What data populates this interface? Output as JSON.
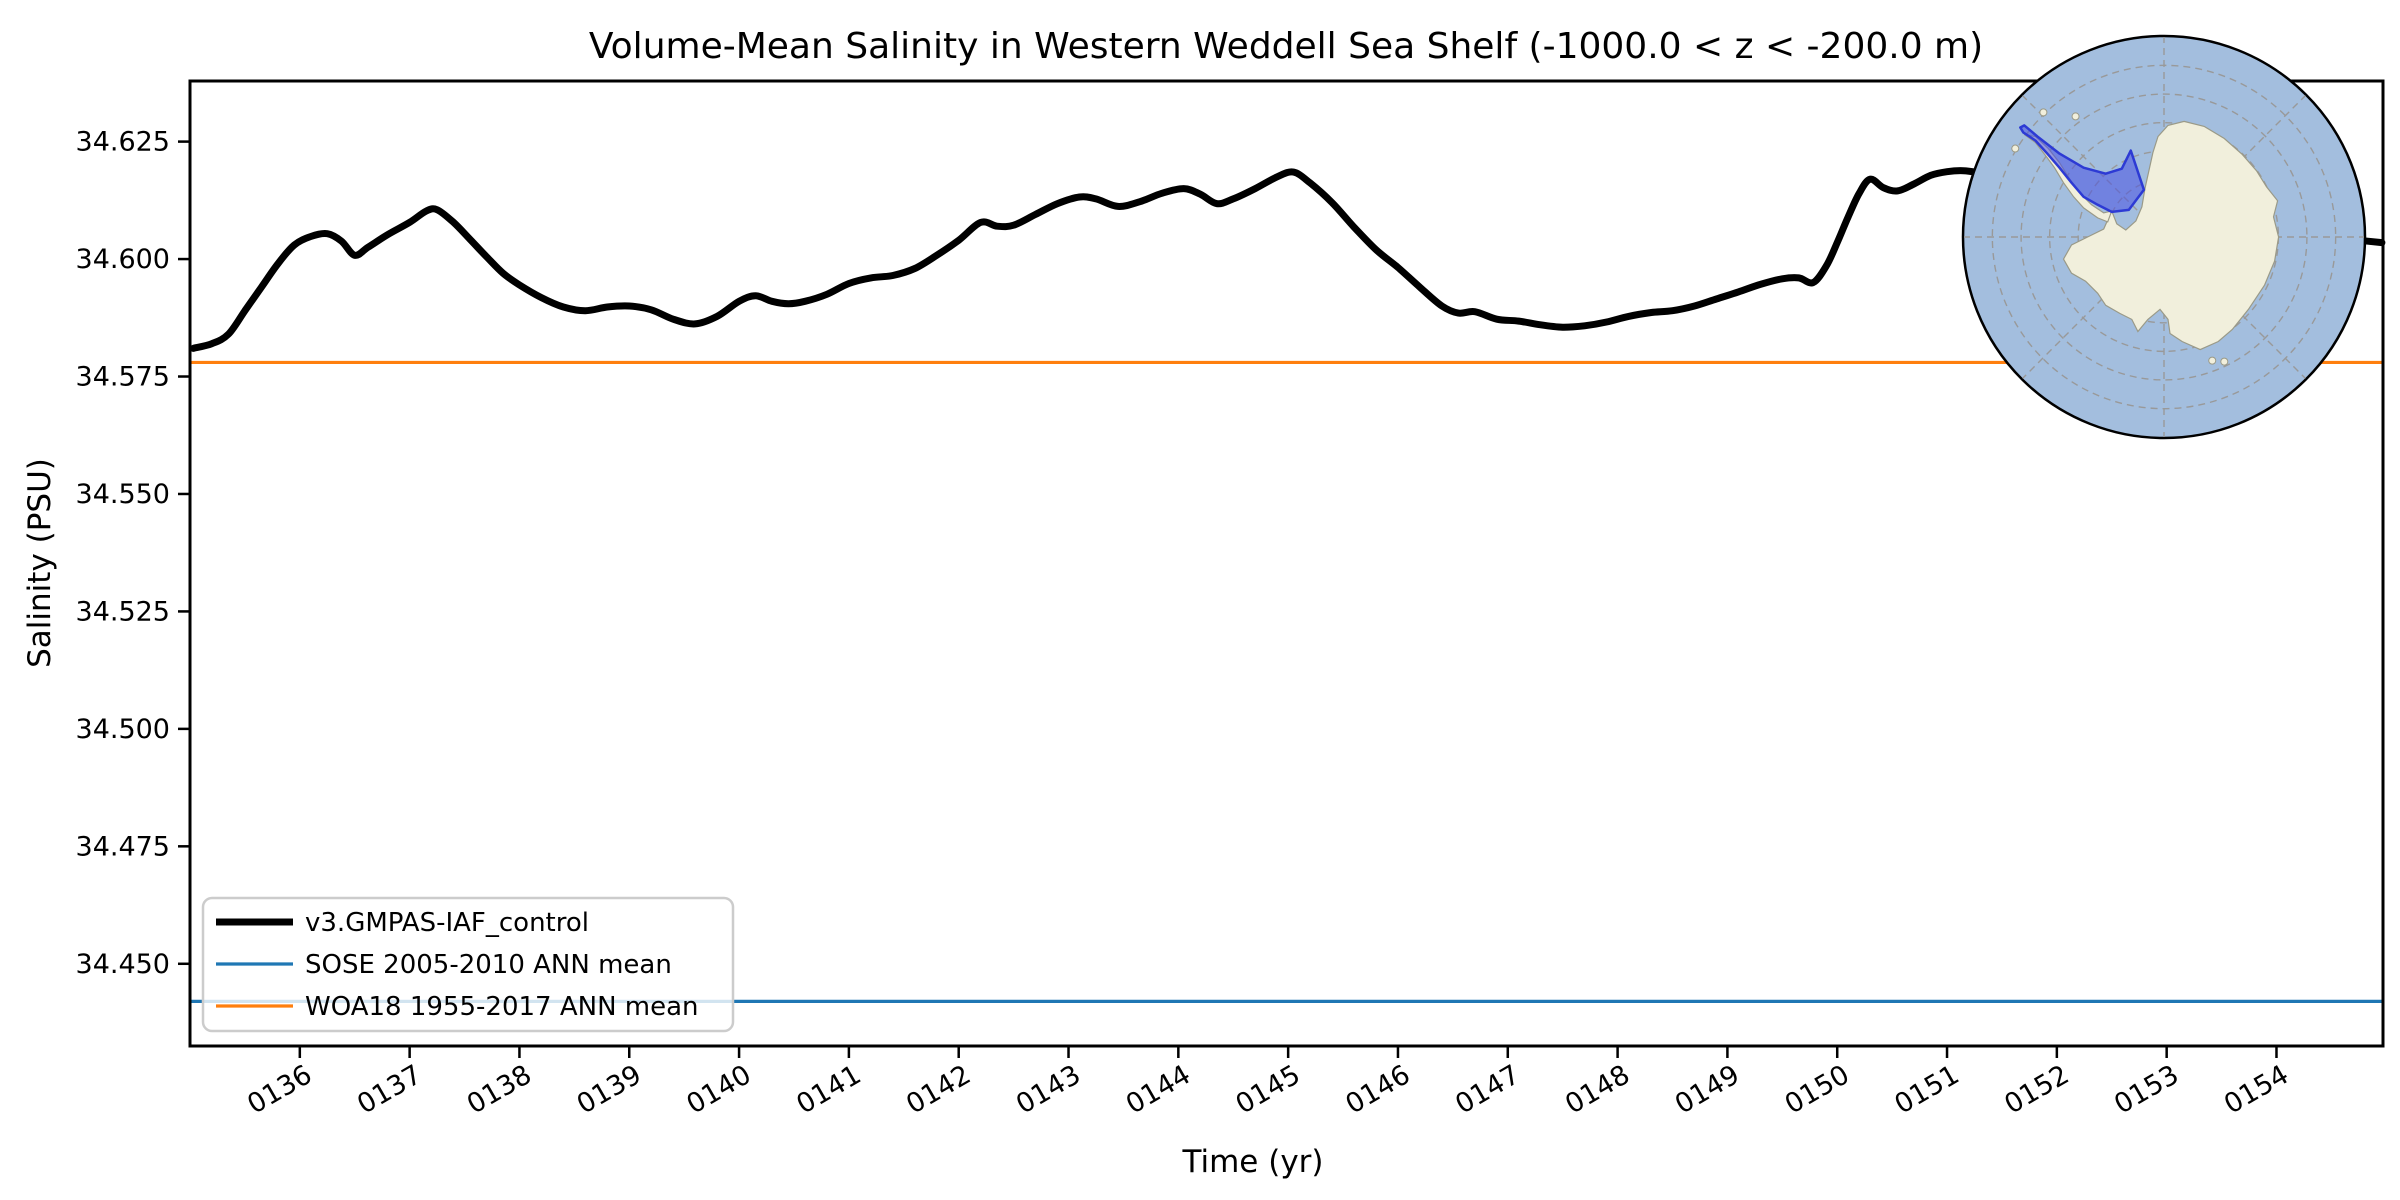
{
  "title": "Volume-Mean Salinity in Western Weddell Sea Shelf (-1000.0 < z < -200.0 m)",
  "axes": {
    "xlabel": "Time (yr)",
    "ylabel": "Salinity (PSU)",
    "x_tick_labels": [
      "0136",
      "0137",
      "0138",
      "0139",
      "0140",
      "0141",
      "0142",
      "0143",
      "0144",
      "0145",
      "0146",
      "0147",
      "0148",
      "0149",
      "0150",
      "0151",
      "0152",
      "0153",
      "0154"
    ],
    "x_tick_values": [
      136,
      137,
      138,
      139,
      140,
      141,
      142,
      143,
      144,
      145,
      146,
      147,
      148,
      149,
      150,
      151,
      152,
      153,
      154
    ],
    "y_tick_labels": [
      "34.450",
      "34.475",
      "34.500",
      "34.525",
      "34.550",
      "34.575",
      "34.600",
      "34.625"
    ],
    "y_tick_values": [
      34.45,
      34.475,
      34.5,
      34.525,
      34.55,
      34.575,
      34.6,
      34.625
    ]
  },
  "legend": {
    "entries": [
      {
        "label": "v3.GMPAS-IAF_control",
        "color": "#000000",
        "line_width": 7
      },
      {
        "label": "SOSE 2005-2010 ANN mean",
        "color": "#1f77b4",
        "line_width": 3.2
      },
      {
        "label": "WOA18 1955-2017 ANN mean",
        "color": "#ff7f0e",
        "line_width": 3.2
      }
    ]
  },
  "chart_data": {
    "type": "line",
    "title": "Volume-Mean Salinity in Western Weddell Sea Shelf (-1000.0 < z < -200.0 m)",
    "xlabel": "Time (yr)",
    "ylabel": "Salinity (PSU)",
    "xlim": [
      135.0,
      154.97
    ],
    "ylim": [
      34.4325,
      34.6379
    ],
    "grid": false,
    "legend_position": "lower left",
    "x_ticks": [
      136,
      137,
      138,
      139,
      140,
      141,
      142,
      143,
      144,
      145,
      146,
      147,
      148,
      149,
      150,
      151,
      152,
      153,
      154
    ],
    "y_ticks": [
      34.45,
      34.475,
      34.5,
      34.525,
      34.55,
      34.575,
      34.6,
      34.625
    ],
    "series": [
      {
        "name": "v3.GMPAS-IAF_control",
        "kind": "line",
        "color": "#000000",
        "line_width": 7,
        "points": [
          [
            135.03,
            34.581
          ],
          [
            135.2,
            34.582
          ],
          [
            135.35,
            34.584
          ],
          [
            135.5,
            34.589
          ],
          [
            135.65,
            34.594
          ],
          [
            135.8,
            34.599
          ],
          [
            135.95,
            34.603
          ],
          [
            136.1,
            34.6048
          ],
          [
            136.25,
            34.6054
          ],
          [
            136.38,
            34.6038
          ],
          [
            136.5,
            34.6008
          ],
          [
            136.62,
            34.6025
          ],
          [
            136.8,
            34.6052
          ],
          [
            137.0,
            34.6078
          ],
          [
            137.15,
            34.6102
          ],
          [
            137.25,
            34.6105
          ],
          [
            137.4,
            34.6078
          ],
          [
            137.55,
            34.6042
          ],
          [
            137.7,
            34.6005
          ],
          [
            137.85,
            34.597
          ],
          [
            138.0,
            34.5945
          ],
          [
            138.2,
            34.5918
          ],
          [
            138.4,
            34.5898
          ],
          [
            138.6,
            34.589
          ],
          [
            138.8,
            34.5898
          ],
          [
            139.0,
            34.59
          ],
          [
            139.2,
            34.5892
          ],
          [
            139.4,
            34.5872
          ],
          [
            139.6,
            34.5862
          ],
          [
            139.8,
            34.5878
          ],
          [
            140.0,
            34.591
          ],
          [
            140.15,
            34.5922
          ],
          [
            140.3,
            34.591
          ],
          [
            140.45,
            34.5905
          ],
          [
            140.6,
            34.591
          ],
          [
            140.8,
            34.5925
          ],
          [
            141.0,
            34.5948
          ],
          [
            141.2,
            34.596
          ],
          [
            141.4,
            34.5965
          ],
          [
            141.6,
            34.598
          ],
          [
            141.8,
            34.6008
          ],
          [
            142.0,
            34.604
          ],
          [
            142.2,
            34.6078
          ],
          [
            142.35,
            34.607
          ],
          [
            142.5,
            34.6072
          ],
          [
            142.7,
            34.6095
          ],
          [
            142.9,
            34.6118
          ],
          [
            143.1,
            34.6132
          ],
          [
            143.25,
            34.6128
          ],
          [
            143.45,
            34.6112
          ],
          [
            143.65,
            34.6122
          ],
          [
            143.85,
            34.614
          ],
          [
            144.05,
            34.615
          ],
          [
            144.2,
            34.6138
          ],
          [
            144.35,
            34.6118
          ],
          [
            144.5,
            34.6128
          ],
          [
            144.7,
            34.615
          ],
          [
            144.9,
            34.6175
          ],
          [
            145.05,
            34.6185
          ],
          [
            145.2,
            34.6162
          ],
          [
            145.4,
            34.612
          ],
          [
            145.6,
            34.6068
          ],
          [
            145.8,
            34.602
          ],
          [
            146.0,
            34.5982
          ],
          [
            146.2,
            34.594
          ],
          [
            146.4,
            34.59
          ],
          [
            146.55,
            34.5885
          ],
          [
            146.7,
            34.5888
          ],
          [
            146.9,
            34.5872
          ],
          [
            147.1,
            34.5868
          ],
          [
            147.3,
            34.586
          ],
          [
            147.5,
            34.5855
          ],
          [
            147.7,
            34.5858
          ],
          [
            147.9,
            34.5866
          ],
          [
            148.1,
            34.5878
          ],
          [
            148.3,
            34.5886
          ],
          [
            148.5,
            34.589
          ],
          [
            148.7,
            34.59
          ],
          [
            148.9,
            34.5915
          ],
          [
            149.1,
            34.593
          ],
          [
            149.3,
            34.5946
          ],
          [
            149.5,
            34.5958
          ],
          [
            149.65,
            34.596
          ],
          [
            149.78,
            34.595
          ],
          [
            149.9,
            34.5985
          ],
          [
            150.0,
            34.6035
          ],
          [
            150.1,
            34.609
          ],
          [
            150.2,
            34.614
          ],
          [
            150.3,
            34.617
          ],
          [
            150.42,
            34.6152
          ],
          [
            150.55,
            34.6145
          ],
          [
            150.7,
            34.616
          ],
          [
            150.85,
            34.6178
          ],
          [
            151.0,
            34.6186
          ],
          [
            151.15,
            34.6188
          ],
          [
            151.35,
            34.6182
          ],
          [
            151.6,
            34.6174
          ],
          [
            151.9,
            34.6163
          ],
          [
            152.2,
            34.6152
          ],
          [
            152.5,
            34.614
          ],
          [
            152.8,
            34.6128
          ],
          [
            153.1,
            34.6115
          ],
          [
            153.4,
            34.6102
          ],
          [
            153.7,
            34.6088
          ],
          [
            154.0,
            34.6072
          ],
          [
            154.3,
            34.6056
          ],
          [
            154.55,
            34.6046
          ],
          [
            154.75,
            34.604
          ],
          [
            154.96,
            34.6035
          ]
        ]
      },
      {
        "name": "SOSE 2005-2010 ANN mean",
        "kind": "hline",
        "value": 34.442,
        "color": "#1f77b4",
        "line_width": 3.2
      },
      {
        "name": "WOA18 1955-2017 ANN mean",
        "kind": "hline",
        "value": 34.578,
        "color": "#ff7f0e",
        "line_width": 3.2
      }
    ]
  },
  "inset_map": {
    "name": "antarctica-region-inset",
    "region_name": "Western Weddell Sea Shelf",
    "colors": {
      "ocean": "#a3bede",
      "land": "#f1efdc",
      "coast": "#9a9a88",
      "graticule": "#999999",
      "border": "#000000",
      "region_fill": "rgba(72,80,225,0.55)",
      "region_edge": "#2d3ad4"
    },
    "graticule_radii": [
      0.142,
      0.285,
      0.427,
      0.569,
      0.711,
      0.854
    ],
    "land_main": [
      [
        -0.26,
        -0.13
      ],
      [
        -0.3,
        -0.04
      ],
      [
        -0.38,
        0.0
      ],
      [
        -0.46,
        0.04
      ],
      [
        -0.5,
        0.11
      ],
      [
        -0.46,
        0.18
      ],
      [
        -0.39,
        0.22
      ],
      [
        -0.33,
        0.28
      ],
      [
        -0.29,
        0.34
      ],
      [
        -0.22,
        0.38
      ],
      [
        -0.16,
        0.41
      ],
      [
        -0.13,
        0.47
      ],
      [
        -0.08,
        0.41
      ],
      [
        -0.02,
        0.36
      ],
      [
        0.02,
        0.41
      ],
      [
        0.03,
        0.48
      ],
      [
        0.09,
        0.52
      ],
      [
        0.18,
        0.56
      ],
      [
        0.27,
        0.52
      ],
      [
        0.34,
        0.46
      ],
      [
        0.42,
        0.36
      ],
      [
        0.5,
        0.24
      ],
      [
        0.55,
        0.12
      ],
      [
        0.57,
        0.0
      ],
      [
        0.545,
        -0.1
      ],
      [
        0.565,
        -0.18
      ],
      [
        0.51,
        -0.25
      ],
      [
        0.46,
        -0.33
      ],
      [
        0.39,
        -0.41
      ],
      [
        0.3,
        -0.49
      ],
      [
        0.2,
        -0.55
      ],
      [
        0.1,
        -0.575
      ],
      [
        0.02,
        -0.555
      ],
      [
        -0.03,
        -0.5
      ],
      [
        -0.055,
        -0.42
      ],
      [
        -0.075,
        -0.33
      ],
      [
        -0.095,
        -0.24
      ],
      [
        -0.11,
        -0.15
      ],
      [
        -0.14,
        -0.08
      ],
      [
        -0.19,
        -0.035
      ],
      [
        -0.235,
        -0.065
      ]
    ],
    "land_peninsula": [
      [
        -0.695,
        -0.51
      ],
      [
        -0.64,
        -0.47
      ],
      [
        -0.585,
        -0.4
      ],
      [
        -0.545,
        -0.345
      ],
      [
        -0.5,
        -0.27
      ],
      [
        -0.45,
        -0.2
      ],
      [
        -0.4,
        -0.145
      ],
      [
        -0.33,
        -0.095
      ],
      [
        -0.28,
        -0.075
      ],
      [
        -0.26,
        -0.13
      ],
      [
        -0.3,
        -0.12
      ],
      [
        -0.36,
        -0.16
      ],
      [
        -0.42,
        -0.22
      ],
      [
        -0.47,
        -0.29
      ],
      [
        -0.52,
        -0.37
      ],
      [
        -0.575,
        -0.44
      ],
      [
        -0.64,
        -0.5
      ]
    ],
    "islands": [
      [
        -0.6,
        -0.62
      ],
      [
        -0.44,
        -0.6
      ],
      [
        0.3,
        0.62
      ],
      [
        0.24,
        0.615
      ],
      [
        -0.74,
        -0.44
      ]
    ],
    "region_poly": [
      [
        -0.695,
        -0.555
      ],
      [
        -0.63,
        -0.5
      ],
      [
        -0.52,
        -0.415
      ],
      [
        -0.4,
        -0.345
      ],
      [
        -0.29,
        -0.315
      ],
      [
        -0.21,
        -0.34
      ],
      [
        -0.165,
        -0.43
      ],
      [
        -0.1,
        -0.235
      ],
      [
        -0.175,
        -0.135
      ],
      [
        -0.26,
        -0.125
      ],
      [
        -0.33,
        -0.16
      ],
      [
        -0.4,
        -0.2
      ],
      [
        -0.46,
        -0.27
      ],
      [
        -0.52,
        -0.345
      ],
      [
        -0.585,
        -0.42
      ],
      [
        -0.64,
        -0.48
      ],
      [
        -0.7,
        -0.52
      ],
      [
        -0.715,
        -0.545
      ]
    ]
  }
}
